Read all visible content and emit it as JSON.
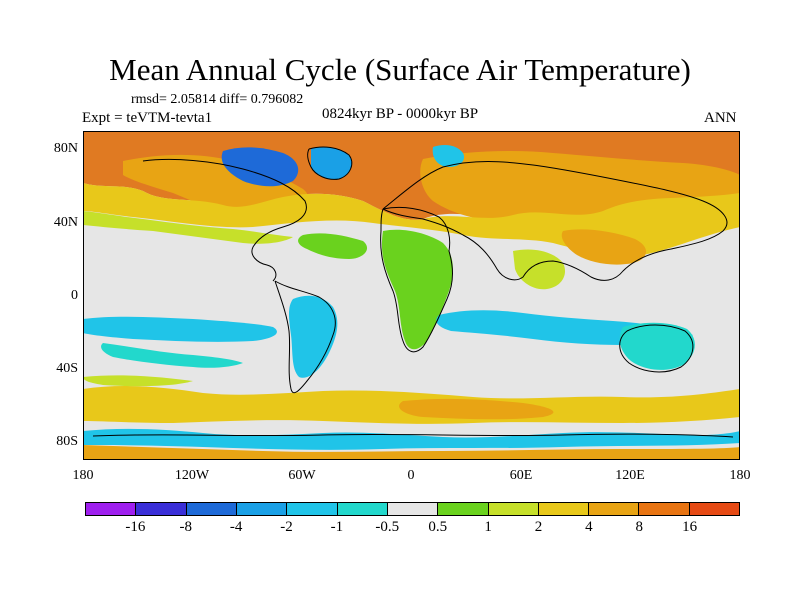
{
  "title": "Mean Annual Cycle (Surface Air Temperature)",
  "stats": "rmsd= 2.05814 diff= 0.796082",
  "experiment": "Expt = teVTM-tevta1",
  "period": "0824kyr BP - 0000kyr BP",
  "season": "ANN",
  "lat_labels": [
    "80N",
    "40N",
    "0",
    "40S",
    "80S"
  ],
  "lon_labels": [
    "180",
    "120W",
    "60W",
    "0",
    "60E",
    "120E",
    "180"
  ],
  "colorbar": {
    "colors": [
      "#9f1fef",
      "#3a2fd8",
      "#1e6ad8",
      "#1aa0e6",
      "#20c4e8",
      "#22d8cc",
      "#e6e6e6",
      "#6ad21e",
      "#c6e02a",
      "#e8c81a",
      "#e8a414",
      "#e87412",
      "#e64a14"
    ],
    "labels": [
      "-16",
      "-8",
      "-4",
      "-2",
      "-1",
      "-0.5",
      "0.5",
      "1",
      "2",
      "4",
      "8",
      "16"
    ]
  },
  "map_colors": {
    "warm_high": "#e07a22",
    "warm": "#e8a414",
    "warm_mid": "#e8c81a",
    "warm_low": "#c6e02a",
    "slight": "#6ad21e",
    "neutral": "#e6e6e6",
    "cool_slight": "#22d8cc",
    "cool": "#20c4e8",
    "cold": "#1aa0e6",
    "colder": "#1e6ad8"
  }
}
